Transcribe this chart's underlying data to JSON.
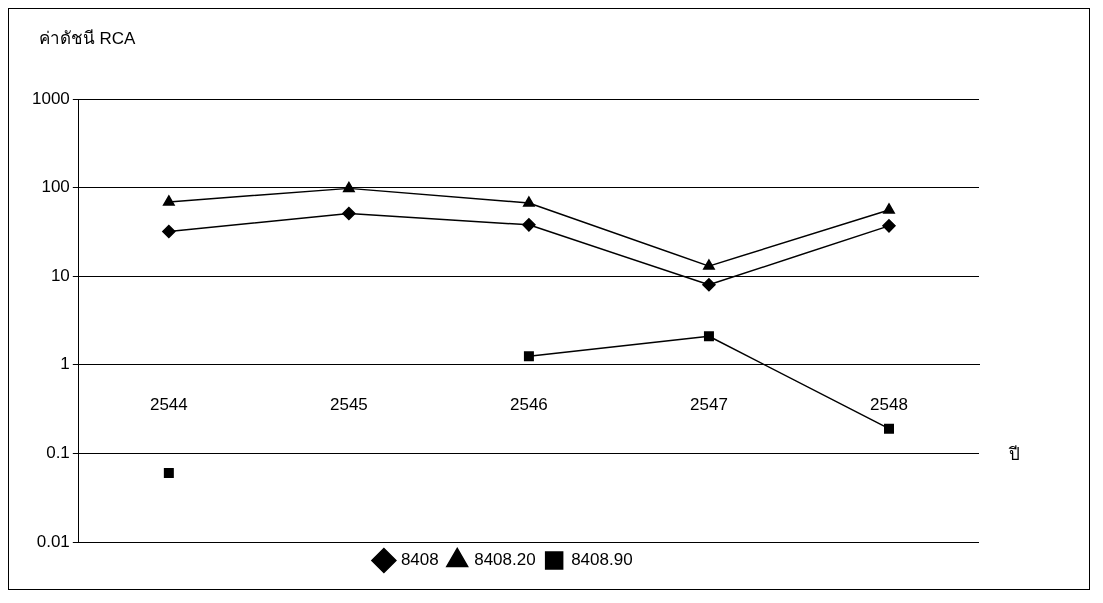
{
  "chart_data": {
    "type": "line",
    "ylabel": "ค่าดัชนี RCA",
    "xlabel": "ปี",
    "categories": [
      "2544",
      "2545",
      "2546",
      "2547",
      "2548"
    ],
    "series": [
      {
        "name": "8408",
        "color": "#000000",
        "marker": "diamond",
        "values": [
          32,
          51,
          38,
          8,
          37
        ]
      },
      {
        "name": "8408.20",
        "color": "#000000",
        "marker": "triangle",
        "values": [
          69,
          98,
          67,
          13,
          56
        ]
      },
      {
        "name": "8408.90",
        "color": "#000000",
        "marker": "square",
        "values": [
          0.06,
          null,
          1.25,
          2.1,
          0.19
        ]
      }
    ],
    "log": "y",
    "ylim": [
      0.01,
      1000
    ],
    "yticks": [
      0.01,
      0.1,
      1,
      10,
      100,
      1000
    ],
    "grid": "y",
    "legend": "bottom",
    "line_style": "solid"
  }
}
